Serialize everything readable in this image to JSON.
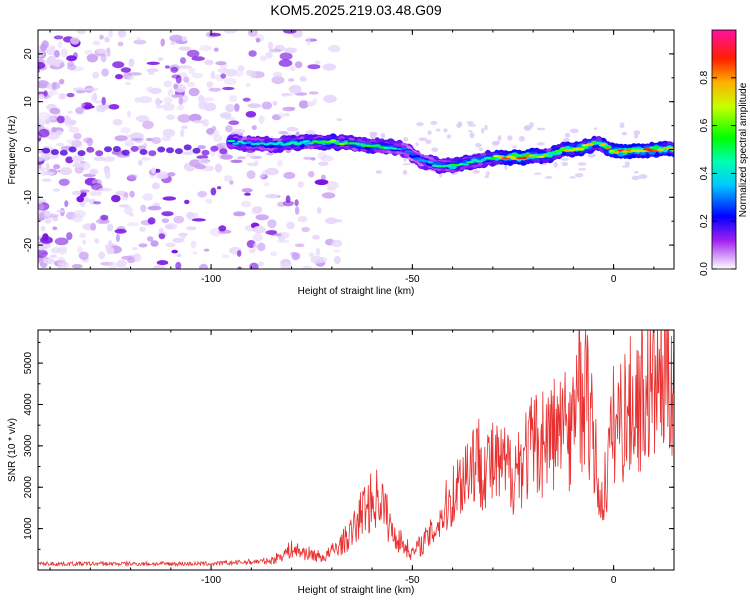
{
  "chart_data": [
    {
      "type": "heatmap",
      "title": "KOM5.2025.219.03.48.G09",
      "xlabel": "Height of straight line (km)",
      "ylabel": "Frequency (Hz)",
      "xlim": [
        -143,
        15
      ],
      "ylim": [
        -25,
        25
      ],
      "xticks": [
        -100,
        -50,
        0
      ],
      "yticks": [
        -20,
        -10,
        0,
        10,
        20
      ],
      "colorbar": {
        "label": "Normalized spectral amplitude",
        "range": [
          0,
          1
        ],
        "ticks": [
          0.0,
          0.2,
          0.4,
          0.6,
          0.8
        ]
      },
      "ridge": [
        {
          "x": -95,
          "f": 1.5,
          "amp": 0.45
        },
        {
          "x": -90,
          "f": 1.2,
          "amp": 0.4
        },
        {
          "x": -85,
          "f": 1.0,
          "amp": 0.42
        },
        {
          "x": -80,
          "f": 1.3,
          "amp": 0.55
        },
        {
          "x": -75,
          "f": 1.5,
          "amp": 0.5
        },
        {
          "x": -70,
          "f": 1.6,
          "amp": 0.65
        },
        {
          "x": -65,
          "f": 1.2,
          "amp": 0.5
        },
        {
          "x": -60,
          "f": 0.8,
          "amp": 0.55
        },
        {
          "x": -55,
          "f": 0.5,
          "amp": 0.45
        },
        {
          "x": -52,
          "f": 0.0,
          "amp": 0.35
        },
        {
          "x": -48,
          "f": -2.2,
          "amp": 0.35
        },
        {
          "x": -44,
          "f": -3.2,
          "amp": 0.45
        },
        {
          "x": -40,
          "f": -3.5,
          "amp": 0.55
        },
        {
          "x": -36,
          "f": -2.8,
          "amp": 0.5
        },
        {
          "x": -32,
          "f": -2.0,
          "amp": 0.5
        },
        {
          "x": -28,
          "f": -1.6,
          "amp": 0.75
        },
        {
          "x": -24,
          "f": -1.6,
          "amp": 0.9
        },
        {
          "x": -20,
          "f": -1.5,
          "amp": 0.85
        },
        {
          "x": -16,
          "f": -1.2,
          "amp": 0.6
        },
        {
          "x": -12,
          "f": 0.0,
          "amp": 0.75
        },
        {
          "x": -8,
          "f": 0.3,
          "amp": 0.8
        },
        {
          "x": -4,
          "f": 1.5,
          "amp": 0.6
        },
        {
          "x": 0,
          "f": -0.5,
          "amp": 0.9
        },
        {
          "x": 5,
          "f": -0.3,
          "amp": 0.95
        },
        {
          "x": 10,
          "f": 0.0,
          "amp": 0.85
        },
        {
          "x": 15,
          "f": 0.2,
          "amp": 0.7
        }
      ]
    },
    {
      "type": "line",
      "xlabel": "Height of straight line (km)",
      "ylabel": "SNR (10 * v/v)",
      "xlim": [
        -143,
        15
      ],
      "ylim": [
        0,
        5800
      ],
      "xticks": [
        -100,
        -50,
        0
      ],
      "yticks": [
        1000,
        2000,
        3000,
        4000,
        5000
      ],
      "line_color": "#e83030",
      "envelope": [
        {
          "x": -143,
          "snr": 150
        },
        {
          "x": -100,
          "snr": 150
        },
        {
          "x": -85,
          "snr": 220
        },
        {
          "x": -80,
          "snr": 500
        },
        {
          "x": -72,
          "snr": 300
        },
        {
          "x": -68,
          "snr": 600
        },
        {
          "x": -65,
          "snr": 900
        },
        {
          "x": -62,
          "snr": 1500
        },
        {
          "x": -58,
          "snr": 1800
        },
        {
          "x": -55,
          "snr": 900
        },
        {
          "x": -50,
          "snr": 400
        },
        {
          "x": -45,
          "snr": 900
        },
        {
          "x": -40,
          "snr": 1800
        },
        {
          "x": -35,
          "snr": 2700
        },
        {
          "x": -30,
          "snr": 2500
        },
        {
          "x": -25,
          "snr": 2400
        },
        {
          "x": -20,
          "snr": 3000
        },
        {
          "x": -15,
          "snr": 3300
        },
        {
          "x": -10,
          "snr": 3500
        },
        {
          "x": -7,
          "snr": 4300
        },
        {
          "x": -5,
          "snr": 3000
        },
        {
          "x": -3,
          "snr": 1500
        },
        {
          "x": 0,
          "snr": 3500
        },
        {
          "x": 5,
          "snr": 4000
        },
        {
          "x": 10,
          "snr": 4500
        },
        {
          "x": 15,
          "snr": 4900
        }
      ]
    }
  ]
}
